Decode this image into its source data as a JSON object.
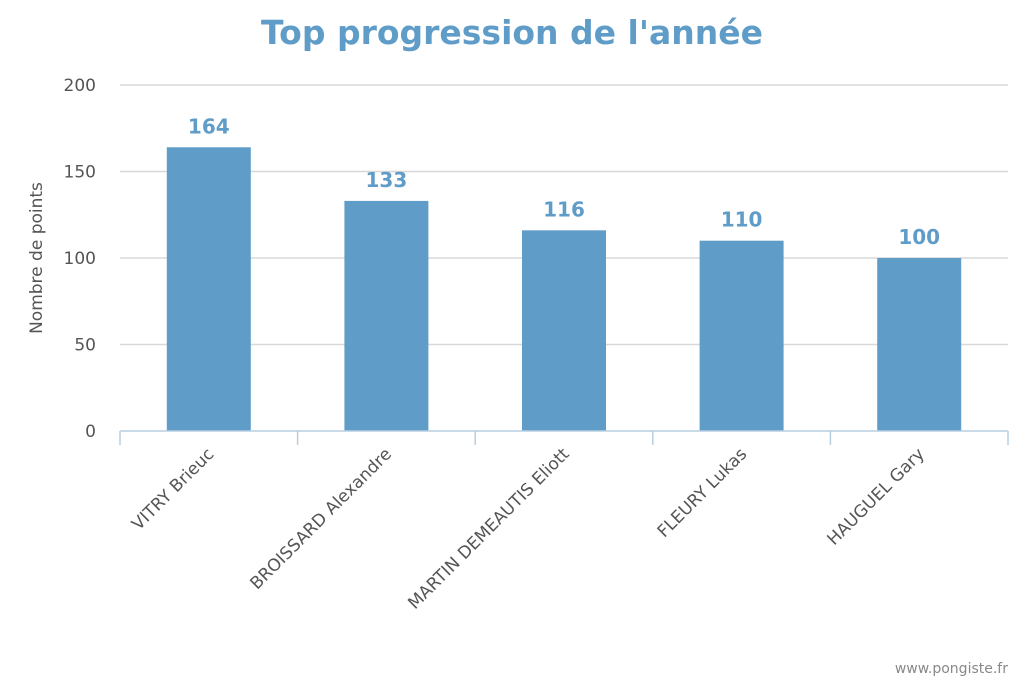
{
  "chart_data": {
    "type": "bar",
    "title": "Top progression de l'année",
    "xlabel": "",
    "ylabel": "Nombre de points",
    "categories": [
      "VITRY Brieuc",
      "BROISSARD Alexandre",
      "MARTIN DEMEAUTIS Eliott",
      "FLEURY Lukas",
      "HAUGUEL Gary"
    ],
    "values": [
      164,
      133,
      116,
      110,
      100
    ],
    "data_labels": [
      "164",
      "133",
      "116",
      "110",
      "100"
    ],
    "ylim": [
      0,
      200
    ],
    "yticks": [
      0,
      50,
      100,
      150,
      200
    ],
    "ytick_labels": [
      "0",
      "50",
      "100",
      "150",
      "200"
    ],
    "grid": true,
    "legend": "none",
    "colors": {
      "bar": "#5f9dc8",
      "title": "#5f9dc8",
      "data_label": "#5f9dc8",
      "grid": "#d8d8d8",
      "axis": "#b7cde0"
    }
  },
  "credit": "www.pongiste.fr"
}
